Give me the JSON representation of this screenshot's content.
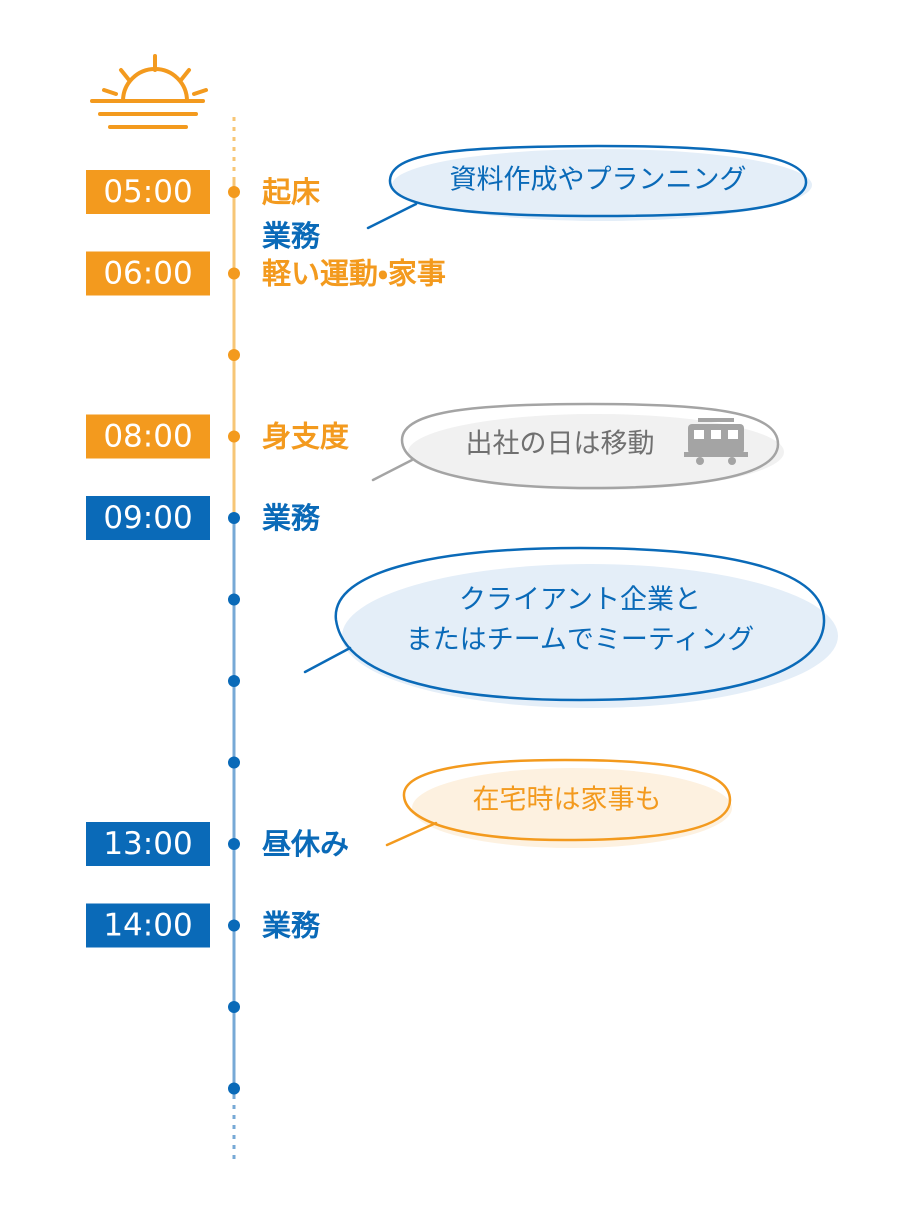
{
  "timeline": [
    {
      "time": "05:00",
      "labels": [
        "起床",
        "業務"
      ]
    },
    {
      "time": "06:00",
      "labels": [
        "軽い運動・家事"
      ]
    },
    {
      "time": "08:00",
      "labels": [
        "身支度"
      ]
    },
    {
      "time": "09:00",
      "labels": [
        "業務"
      ]
    },
    {
      "time": "13:00",
      "labels": [
        "昼休み"
      ]
    },
    {
      "time": "14:00",
      "labels": [
        "業務"
      ]
    }
  ],
  "notes": [
    {
      "lines": [
        "資料作成やプランニング"
      ]
    },
    {
      "lines": [
        "出社の日は移動"
      ]
    },
    {
      "lines": [
        "クライアント企業と",
        "またはチームでミーティング"
      ]
    },
    {
      "lines": [
        "在宅時は家事も"
      ]
    }
  ]
}
